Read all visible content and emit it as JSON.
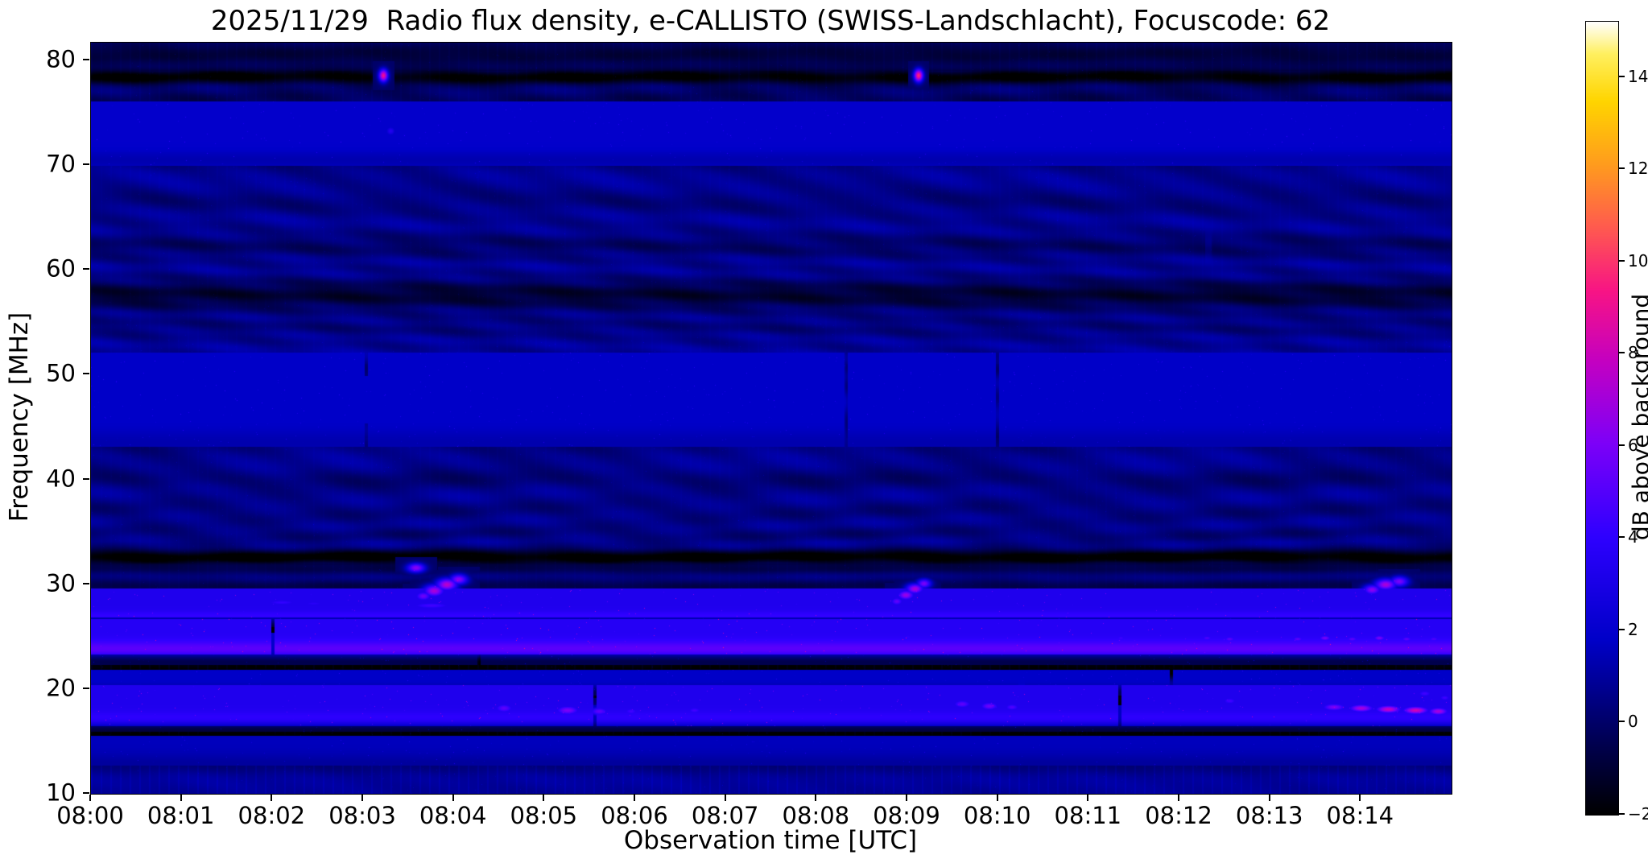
{
  "figure": {
    "background": "#ffffff",
    "text_color": "#000000"
  },
  "chart_data": {
    "type": "heatmap",
    "title": "2025/11/29  Radio flux density, e-CALLISTO (SWISS-Landschlacht), Focuscode: 62",
    "xlabel": "Observation time [UTC]",
    "ylabel": "Frequency [MHz]",
    "x_ticks": [
      "08:00",
      "08:01",
      "08:02",
      "08:03",
      "08:04",
      "08:05",
      "08:06",
      "08:07",
      "08:08",
      "08:09",
      "08:10",
      "08:11",
      "08:12",
      "08:13",
      "08:14"
    ],
    "x_tick_minutes": [
      0,
      1,
      2,
      3,
      4,
      5,
      6,
      7,
      8,
      9,
      10,
      11,
      12,
      13,
      14
    ],
    "x_range_minutes": [
      0,
      15
    ],
    "y_ticks": [
      10,
      20,
      30,
      40,
      50,
      60,
      70,
      80
    ],
    "y_range_mhz": [
      10,
      81.7
    ],
    "grid": false,
    "colorbar": {
      "label": "dB above background",
      "ticks": [
        -2,
        0,
        2,
        4,
        6,
        8,
        10,
        12,
        14
      ],
      "tick_labels": [
        "−2",
        "0",
        "2",
        "4",
        "6",
        "8",
        "10",
        "12",
        "14"
      ],
      "range": [
        -2,
        15.2
      ]
    },
    "colormap": {
      "name": "gnuplot2-like (black-blue-magenta-yellow-white)",
      "stops": [
        [
          0.0,
          "#000000"
        ],
        [
          0.09,
          "#000050"
        ],
        [
          0.22,
          "#0000c8"
        ],
        [
          0.35,
          "#2e00ff"
        ],
        [
          0.47,
          "#7e00f8"
        ],
        [
          0.57,
          "#c300c3"
        ],
        [
          0.66,
          "#f81486"
        ],
        [
          0.74,
          "#ff5a50"
        ],
        [
          0.82,
          "#ff9c1e"
        ],
        [
          0.9,
          "#ffd500"
        ],
        [
          0.96,
          "#fff060"
        ],
        [
          1.0,
          "#ffffff"
        ]
      ]
    },
    "background_level_db": 1.3,
    "noise_amplitude_db": 0.45,
    "bands": [
      {
        "f": 80.6,
        "s": 1.0,
        "dv": -1.6,
        "dash": 0.6
      },
      {
        "f": 78.4,
        "s": 0.5,
        "dv": -2.6,
        "dash": 0.75
      },
      {
        "f": 76.2,
        "s": 0.9,
        "dv": -1.0,
        "dash": 0.5
      },
      {
        "f": 73.0,
        "s": 1.1,
        "dv": -1.8,
        "dash": 0.6,
        "spd": 0.25,
        "spv": 3.2
      },
      {
        "f": 70.5,
        "s": 0.6,
        "dv": -0.6
      },
      {
        "f": 66.5,
        "s": 0.8,
        "dv": -0.5
      },
      {
        "f": 62.3,
        "s": 0.8,
        "dv": -0.9,
        "dash": 0.5
      },
      {
        "f": 57.6,
        "s": 1.0,
        "dv": -1.9,
        "dash": 0.6
      },
      {
        "f": 54.5,
        "s": 0.6,
        "dv": -0.5
      },
      {
        "f": 50.5,
        "s": 0.5,
        "dv": -0.6
      },
      {
        "f": 47.6,
        "s": 1.6,
        "dv": 0.2,
        "spd": 0.3,
        "spv": 3.0
      },
      {
        "f": 43.5,
        "s": 0.8,
        "dv": -0.5
      },
      {
        "f": 40.0,
        "s": 0.7,
        "dv": -0.7,
        "dash": 0.5
      },
      {
        "f": 37.0,
        "s": 0.7,
        "dv": -0.5
      },
      {
        "f": 34.8,
        "s": 0.5,
        "dv": -0.6
      },
      {
        "f": 32.6,
        "s": 0.5,
        "dv": -3.2,
        "dash": 0.75
      },
      {
        "f": 31.4,
        "s": 0.35,
        "dv": -1.2
      },
      {
        "f": 29.8,
        "s": 0.5,
        "dv": -1.4,
        "dash": 0.5
      },
      {
        "f": 28.2,
        "s": 0.5,
        "dv": -2.8,
        "dash": 0.75,
        "spd": 0.05,
        "spv": 5.5
      },
      {
        "f": 26.9,
        "s": 0.35,
        "dv": 0.9,
        "spd": 0.2,
        "spv": 2.8
      },
      {
        "f": 26.0,
        "s": 0.4,
        "dv": -1.8,
        "dash": 0.6
      },
      {
        "f": 25.0,
        "s": 0.6,
        "dv": -3.0,
        "dash": 0.8,
        "spd": 0.06,
        "spv": 6.0
      },
      {
        "f": 23.8,
        "s": 0.55,
        "dv": 1.6,
        "spd": 0.3,
        "spv": 3.2
      },
      {
        "f": 22.7,
        "s": 0.4,
        "dv": -2.0,
        "dash": 0.6
      },
      {
        "f": 21.6,
        "s": 0.55,
        "dv": -2.6,
        "dash": 0.7
      },
      {
        "f": 20.6,
        "s": 0.45,
        "dv": 1.0,
        "spd": 0.2,
        "spv": 3.0
      },
      {
        "f": 19.7,
        "s": 0.4,
        "dv": -1.6,
        "dash": 0.5
      },
      {
        "f": 18.4,
        "s": 0.7,
        "dv": -2.4,
        "dash": 0.7,
        "spd": 0.05,
        "spv": 5.5
      },
      {
        "f": 17.2,
        "s": 0.45,
        "dv": 0.7,
        "spd": 0.15,
        "spv": 2.8
      },
      {
        "f": 16.1,
        "s": 0.45,
        "dv": -2.2,
        "dash": 0.65
      },
      {
        "f": 15.2,
        "s": 0.4,
        "dv": -2.5,
        "dash": 0.7
      },
      {
        "f": 14.1,
        "s": 0.5,
        "dv": 0.4,
        "spd": 0.12,
        "spv": 2.6
      },
      {
        "f": 12.8,
        "s": 0.7,
        "dv": -0.6
      },
      {
        "f": 11.5,
        "s": 0.6,
        "dv": 0.2
      }
    ],
    "events": [
      {
        "t": 3.22,
        "f": 78.6,
        "w": 0.05,
        "h": 0.6,
        "v": 12
      },
      {
        "t": 9.12,
        "f": 78.6,
        "w": 0.05,
        "h": 0.6,
        "v": 13
      },
      {
        "t": 3.3,
        "f": 73.3,
        "w": 0.06,
        "h": 0.5,
        "v": 4.5
      },
      {
        "t": 3.58,
        "f": 31.6,
        "w": 0.1,
        "h": 0.45,
        "v": 8.5
      },
      {
        "t": 3.66,
        "f": 28.9,
        "w": 0.1,
        "h": 0.5,
        "v": 7.5
      },
      {
        "t": 3.78,
        "f": 29.4,
        "w": 0.12,
        "h": 0.6,
        "v": 9.5
      },
      {
        "t": 3.92,
        "f": 30.0,
        "w": 0.12,
        "h": 0.6,
        "v": 10
      },
      {
        "t": 4.05,
        "f": 30.5,
        "w": 0.1,
        "h": 0.5,
        "v": 8.5
      },
      {
        "t": 3.75,
        "f": 28.0,
        "w": 0.3,
        "h": 0.4,
        "v": 6
      },
      {
        "t": 8.88,
        "f": 28.4,
        "w": 0.08,
        "h": 0.45,
        "v": 7
      },
      {
        "t": 8.98,
        "f": 29.0,
        "w": 0.1,
        "h": 0.5,
        "v": 9
      },
      {
        "t": 9.08,
        "f": 29.6,
        "w": 0.1,
        "h": 0.5,
        "v": 9.5
      },
      {
        "t": 9.18,
        "f": 30.1,
        "w": 0.08,
        "h": 0.45,
        "v": 8
      },
      {
        "t": 14.12,
        "f": 29.5,
        "w": 0.1,
        "h": 0.5,
        "v": 8.5
      },
      {
        "t": 14.27,
        "f": 30.0,
        "w": 0.12,
        "h": 0.55,
        "v": 9.5
      },
      {
        "t": 14.42,
        "f": 30.3,
        "w": 0.1,
        "h": 0.5,
        "v": 8
      },
      {
        "t": 7.35,
        "f": 23.8,
        "w": 0.07,
        "h": 0.3,
        "v": 6
      },
      {
        "t": 7.55,
        "f": 23.9,
        "w": 0.07,
        "h": 0.3,
        "v": 6.2
      },
      {
        "t": 7.75,
        "f": 23.8,
        "w": 0.07,
        "h": 0.3,
        "v": 6
      },
      {
        "t": 7.95,
        "f": 23.9,
        "w": 0.07,
        "h": 0.3,
        "v": 5.8
      },
      {
        "t": 8.12,
        "f": 23.8,
        "w": 0.07,
        "h": 0.3,
        "v": 5.5
      },
      {
        "t": 4.55,
        "f": 18.2,
        "w": 0.12,
        "h": 0.5,
        "v": 7
      },
      {
        "t": 5.25,
        "f": 18.0,
        "w": 0.15,
        "h": 0.5,
        "v": 8
      },
      {
        "t": 5.6,
        "f": 17.9,
        "w": 0.12,
        "h": 0.45,
        "v": 7
      },
      {
        "t": 5.95,
        "f": 17.9,
        "w": 0.1,
        "h": 0.4,
        "v": 6
      },
      {
        "t": 6.65,
        "f": 18.0,
        "w": 0.1,
        "h": 0.4,
        "v": 6
      },
      {
        "t": 9.6,
        "f": 18.6,
        "w": 0.12,
        "h": 0.45,
        "v": 7
      },
      {
        "t": 9.9,
        "f": 18.4,
        "w": 0.12,
        "h": 0.45,
        "v": 7.5
      },
      {
        "t": 10.15,
        "f": 18.3,
        "w": 0.1,
        "h": 0.4,
        "v": 6.5
      },
      {
        "t": 12.55,
        "f": 18.9,
        "w": 0.1,
        "h": 0.4,
        "v": 6
      },
      {
        "t": 13.7,
        "f": 18.3,
        "w": 0.15,
        "h": 0.4,
        "v": 8
      },
      {
        "t": 14.0,
        "f": 18.2,
        "w": 0.15,
        "h": 0.4,
        "v": 9.5
      },
      {
        "t": 14.3,
        "f": 18.1,
        "w": 0.15,
        "h": 0.4,
        "v": 10.5
      },
      {
        "t": 14.6,
        "f": 18.0,
        "w": 0.15,
        "h": 0.4,
        "v": 11
      },
      {
        "t": 14.85,
        "f": 17.9,
        "w": 0.12,
        "h": 0.4,
        "v": 9.5
      },
      {
        "t": 11.35,
        "f": 24.9,
        "w": 0.07,
        "h": 0.3,
        "v": 6
      },
      {
        "t": 12.3,
        "f": 24.9,
        "w": 0.08,
        "h": 0.3,
        "v": 6.5
      },
      {
        "t": 12.55,
        "f": 24.8,
        "w": 0.08,
        "h": 0.3,
        "v": 7
      },
      {
        "t": 13.3,
        "f": 24.8,
        "w": 0.08,
        "h": 0.3,
        "v": 7
      },
      {
        "t": 13.6,
        "f": 24.9,
        "w": 0.08,
        "h": 0.3,
        "v": 8
      },
      {
        "t": 13.9,
        "f": 24.8,
        "w": 0.08,
        "h": 0.3,
        "v": 7
      },
      {
        "t": 14.2,
        "f": 24.9,
        "w": 0.08,
        "h": 0.3,
        "v": 8
      },
      {
        "t": 14.5,
        "f": 24.8,
        "w": 0.08,
        "h": 0.3,
        "v": 7
      },
      {
        "t": 14.8,
        "f": 24.8,
        "w": 0.08,
        "h": 0.3,
        "v": 6.5
      },
      {
        "t": 14.7,
        "f": 19.6,
        "w": 0.1,
        "h": 0.4,
        "v": 6
      },
      {
        "t": 14.92,
        "f": 19.2,
        "w": 0.08,
        "h": 0.35,
        "v": 6
      },
      {
        "t": 2.1,
        "f": 28.3,
        "w": 0.25,
        "h": 0.35,
        "v": 5.5
      },
      {
        "t": 2.45,
        "f": 28.2,
        "w": 0.2,
        "h": 0.3,
        "v": 5
      },
      {
        "t": 6.7,
        "f": 25.0,
        "w": 0.08,
        "h": 0.3,
        "v": 5
      },
      {
        "t": 9.0,
        "f": 25.0,
        "w": 0.1,
        "h": 0.3,
        "v": 5.5
      }
    ]
  }
}
